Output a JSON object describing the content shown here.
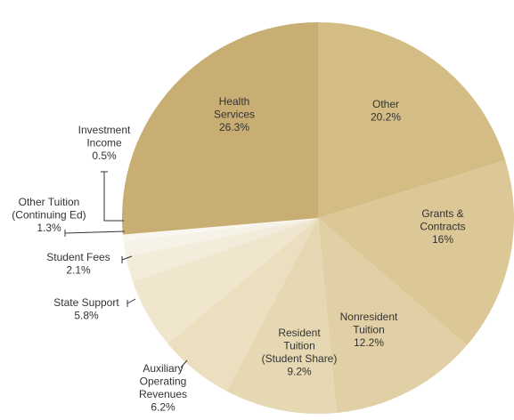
{
  "chart_data": {
    "type": "pie",
    "categories": [
      "Other",
      "Grants &\nContracts",
      "Nonresident\nTuition",
      "Resident\nTuition\n(Student Share)",
      "Auxiliary\nOperating\nRevenues",
      "State Support",
      "Student Fees",
      "Other Tuition\n(Continuing Ed)",
      "Investment\nIncome",
      "Health\nServices"
    ],
    "values": [
      20.2,
      16,
      12.2,
      9.2,
      6.2,
      5.8,
      2.1,
      1.3,
      0.5,
      26.3
    ],
    "value_labels": [
      "20.2%",
      "16%",
      "12.2%",
      "9.2%",
      "6.2%",
      "5.8%",
      "2.1%",
      "1.3%",
      "0.5%",
      "26.3%"
    ],
    "colors": [
      "#d4bc85",
      "#dcc797",
      "#e1d0a5",
      "#e6d8b2",
      "#ebdfc0",
      "#efe6cd",
      "#f3ecdb",
      "#f7f2e7",
      "#faf7f0",
      "#c8ae73"
    ]
  }
}
